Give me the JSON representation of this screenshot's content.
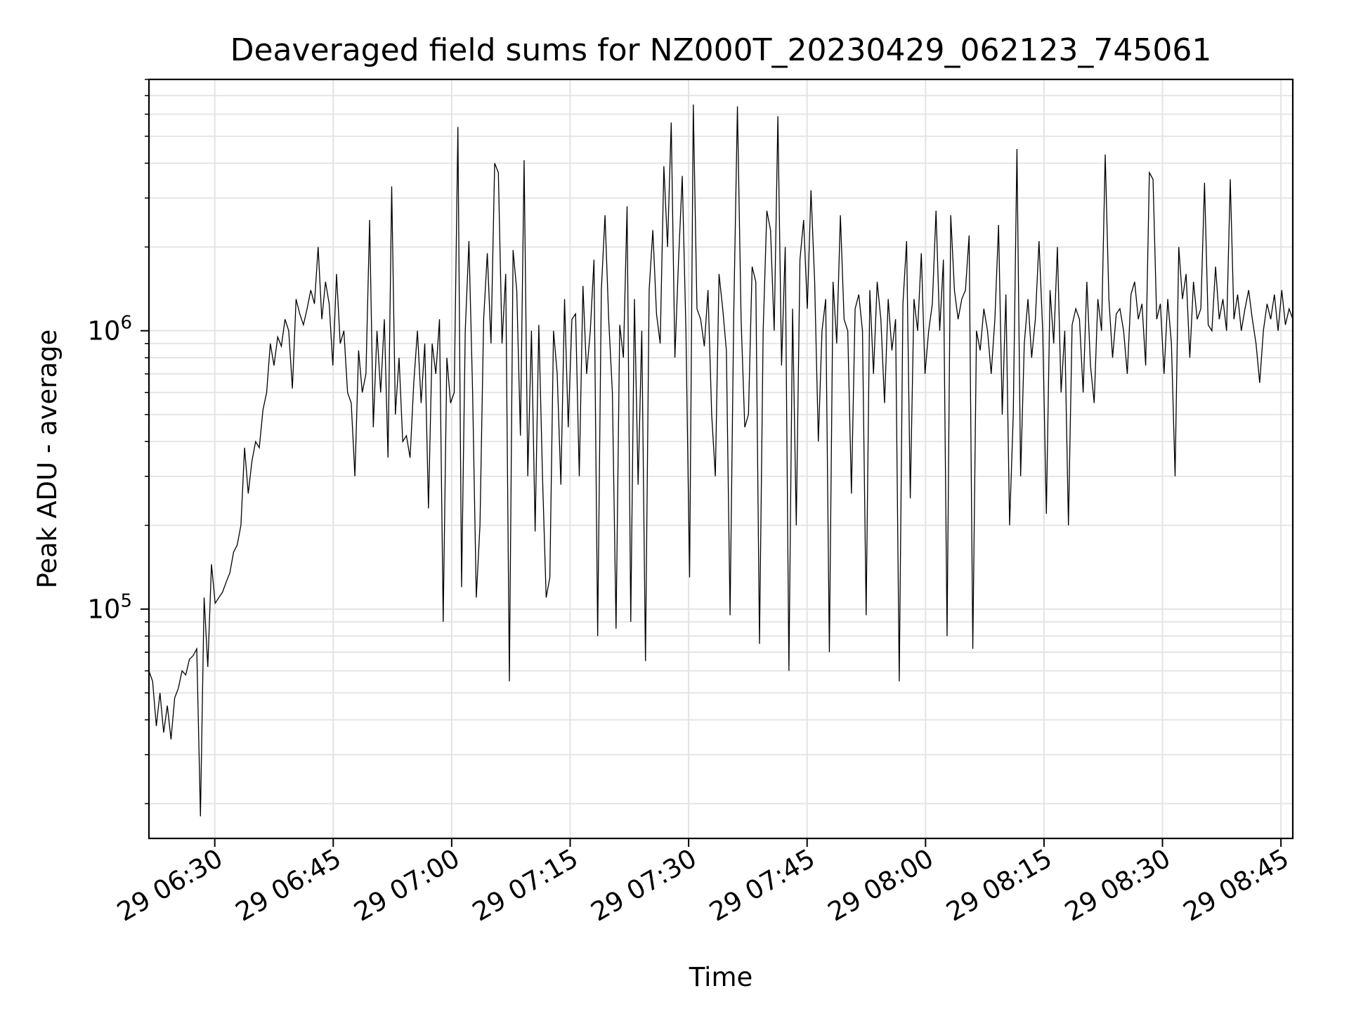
{
  "chart_data": {
    "type": "line",
    "title": "Deaveraged field sums for NZ000T_20230429_062123_745061",
    "xlabel": "Time",
    "ylabel": "Peak ADU - average",
    "y_scale": "log",
    "ylim": [
      15000,
      8000000
    ],
    "xlim": [
      "29 06:21:40",
      "29 08:46:30"
    ],
    "grid": true,
    "line_color": "#000000",
    "x_ticks": [
      {
        "value": "06:30",
        "label": "29 06:30"
      },
      {
        "value": "06:45",
        "label": "29 06:45"
      },
      {
        "value": "07:00",
        "label": "29 07:00"
      },
      {
        "value": "07:15",
        "label": "29 07:15"
      },
      {
        "value": "07:30",
        "label": "29 07:30"
      },
      {
        "value": "07:45",
        "label": "29 07:45"
      },
      {
        "value": "08:00",
        "label": "29 08:00"
      },
      {
        "value": "08:15",
        "label": "29 08:15"
      },
      {
        "value": "08:30",
        "label": "29 08:30"
      },
      {
        "value": "08:45",
        "label": "29 08:45"
      }
    ],
    "y_ticks": [
      {
        "value": 100000,
        "base": "10",
        "exp": "5"
      },
      {
        "value": 1000000,
        "base": "10",
        "exp": "6"
      }
    ],
    "series": [
      {
        "x_start": "06:21:40",
        "x_end": "08:46:30",
        "values": [
          60000,
          55000,
          38000,
          50000,
          36000,
          45000,
          34000,
          48000,
          52000,
          60000,
          58000,
          66000,
          68000,
          72000,
          18000,
          110000,
          62000,
          145000,
          105000,
          110000,
          115000,
          125000,
          135000,
          160000,
          170000,
          200000,
          380000,
          260000,
          340000,
          400000,
          380000,
          520000,
          600000,
          900000,
          750000,
          950000,
          880000,
          1100000,
          1000000,
          620000,
          1300000,
          1150000,
          1050000,
          1200000,
          1400000,
          1250000,
          2000000,
          1100000,
          1500000,
          1250000,
          750000,
          1600000,
          900000,
          1000000,
          600000,
          550000,
          300000,
          850000,
          600000,
          700000,
          2500000,
          450000,
          1000000,
          600000,
          1100000,
          350000,
          3300000,
          500000,
          800000,
          400000,
          420000,
          350000,
          650000,
          1000000,
          550000,
          900000,
          230000,
          900000,
          700000,
          1100000,
          90000,
          800000,
          550000,
          600000,
          5400000,
          120000,
          1000000,
          2100000,
          600000,
          110000,
          200000,
          1100000,
          1900000,
          900000,
          4000000,
          3700000,
          900000,
          1600000,
          55000,
          1950000,
          1400000,
          420000,
          4100000,
          300000,
          1000000,
          190000,
          1050000,
          300000,
          110000,
          130000,
          1000000,
          700000,
          280000,
          1300000,
          450000,
          1100000,
          1150000,
          300000,
          1450000,
          700000,
          1000000,
          1800000,
          80000,
          1400000,
          2600000,
          1100000,
          600000,
          85000,
          1050000,
          800000,
          2800000,
          90000,
          1300000,
          280000,
          1000000,
          65000,
          1400000,
          2300000,
          1150000,
          900000,
          3900000,
          2000000,
          5600000,
          800000,
          1800000,
          3600000,
          1000000,
          130000,
          6500000,
          1200000,
          1100000,
          880000,
          1400000,
          500000,
          300000,
          1600000,
          1200000,
          850000,
          95000,
          1150000,
          6400000,
          1100000,
          450000,
          500000,
          1700000,
          1500000,
          75000,
          1000000,
          2700000,
          2300000,
          1000000,
          5900000,
          750000,
          2000000,
          60000,
          1200000,
          200000,
          1800000,
          2500000,
          1200000,
          3200000,
          1500000,
          400000,
          1000000,
          1300000,
          70000,
          1500000,
          900000,
          2600000,
          1100000,
          1000000,
          260000,
          1200000,
          1350000,
          1000000,
          95000,
          1400000,
          700000,
          1500000,
          1100000,
          550000,
          1300000,
          850000,
          1100000,
          55000,
          1250000,
          2100000,
          250000,
          1300000,
          1000000,
          1900000,
          700000,
          1000000,
          1250000,
          2700000,
          1000000,
          1800000,
          80000,
          2600000,
          1400000,
          1100000,
          1300000,
          1400000,
          2200000,
          72000,
          1000000,
          850000,
          1200000,
          1000000,
          700000,
          1100000,
          2400000,
          500000,
          1350000,
          200000,
          500000,
          4500000,
          300000,
          900000,
          1300000,
          800000,
          1100000,
          2100000,
          1000000,
          220000,
          1400000,
          900000,
          2000000,
          600000,
          1000000,
          200000,
          1050000,
          1200000,
          1100000,
          600000,
          1500000,
          750000,
          550000,
          1300000,
          1000000,
          4300000,
          1300000,
          800000,
          1150000,
          1200000,
          1000000,
          700000,
          1350000,
          1500000,
          1100000,
          1250000,
          750000,
          3700000,
          3500000,
          1100000,
          1250000,
          700000,
          1300000,
          900000,
          300000,
          2000000,
          1300000,
          1600000,
          800000,
          1500000,
          1100000,
          1200000,
          3400000,
          1050000,
          1000000,
          1700000,
          1100000,
          1300000,
          1000000,
          3500000,
          1100000,
          1350000,
          1000000,
          1200000,
          1400000,
          1100000,
          900000,
          650000,
          1000000,
          1250000,
          1100000,
          1350000,
          1000000,
          1400000,
          1050000,
          1200000,
          1100000
        ]
      }
    ]
  }
}
